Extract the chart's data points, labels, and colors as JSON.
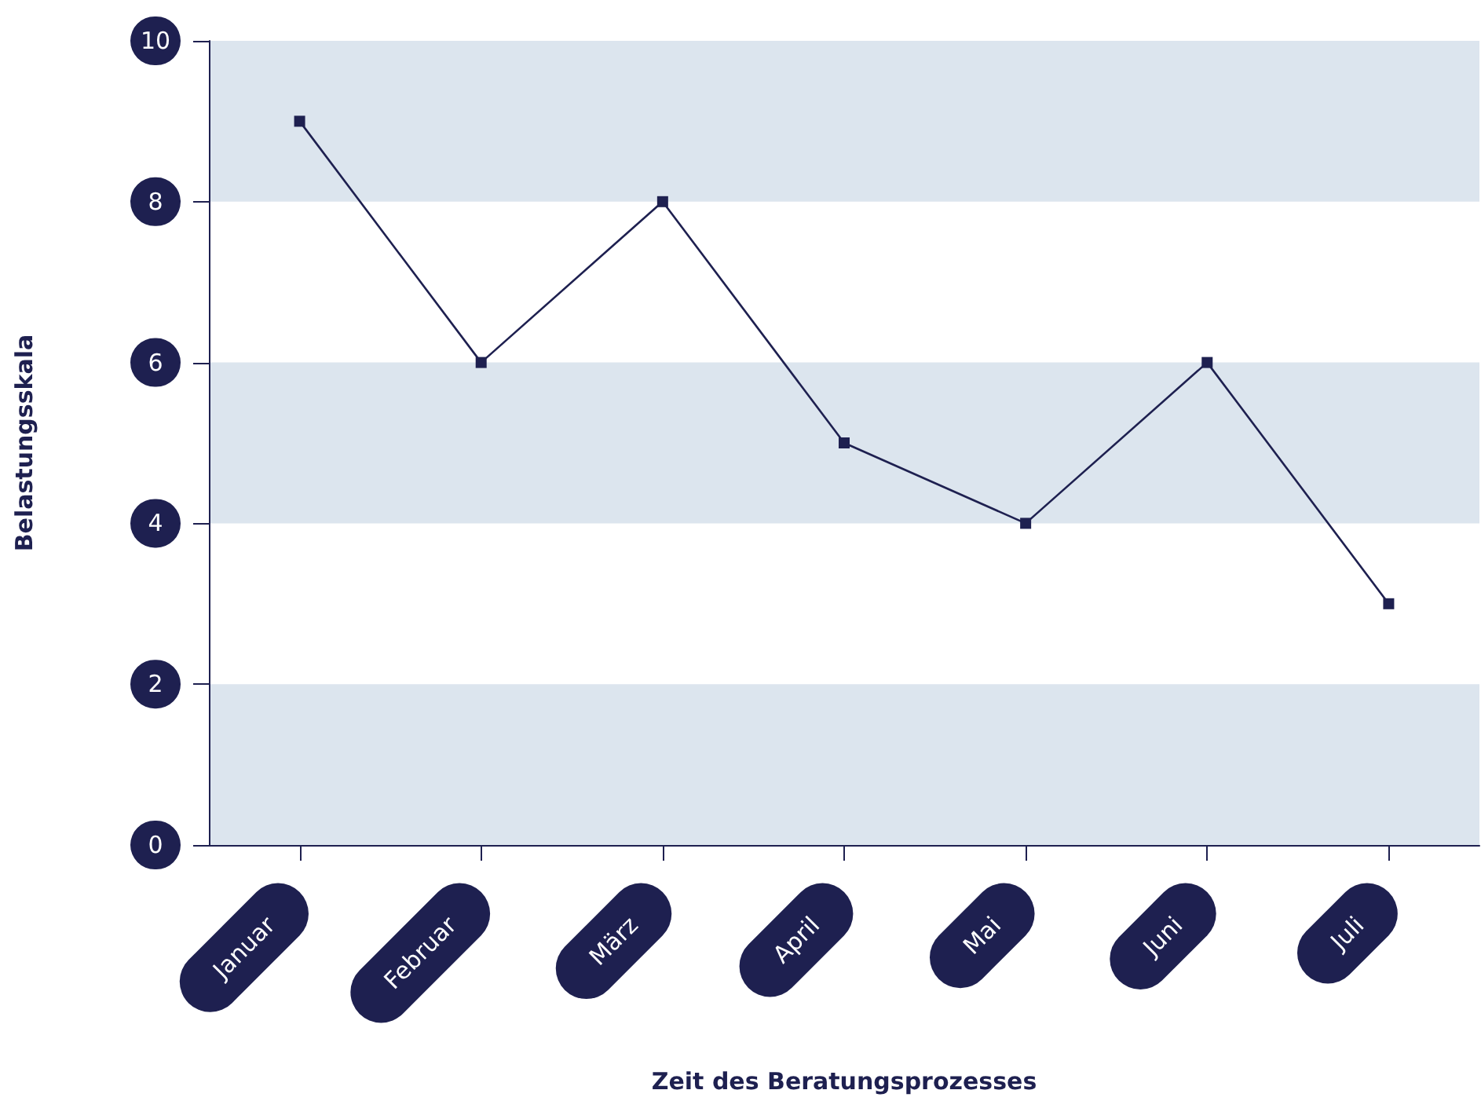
{
  "chart_data": {
    "type": "line",
    "xlabel": "Zeit des Beratungsprozesses",
    "ylabel": "Belastungsskala",
    "categories": [
      "Januar",
      "Februar",
      "März",
      "April",
      "Mai",
      "Juni",
      "Juli"
    ],
    "series": [
      {
        "color": "#1e2050",
        "values": [
          9,
          6,
          8,
          5,
          4,
          6,
          3
        ]
      }
    ],
    "ylim": [
      0,
      10
    ],
    "yticks": [
      0,
      2,
      4,
      6,
      8,
      10
    ],
    "marker": "square",
    "line_style": "solid",
    "bands": [
      {
        "axis": "y",
        "from": 0,
        "to": 2,
        "color": "#dce5ee"
      },
      {
        "axis": "y",
        "from": 4,
        "to": 6,
        "color": "#dce5ee"
      },
      {
        "axis": "y",
        "from": 8,
        "to": 10,
        "color": "#dce5ee"
      }
    ]
  }
}
